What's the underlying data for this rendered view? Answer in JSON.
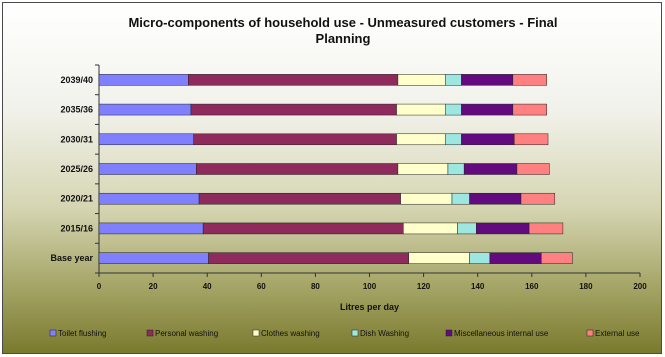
{
  "chart_data": {
    "type": "bar",
    "orientation": "horizontal",
    "stacked": true,
    "title_line1": "Micro-components of household use - Unmeasured customers - Final",
    "title_line2": "Planning",
    "xlabel": "Litres per day",
    "ylabel": "",
    "xlim": [
      0,
      200
    ],
    "xticks": [
      "0",
      "20",
      "40",
      "60",
      "80",
      "100",
      "120",
      "140",
      "160",
      "180",
      "200"
    ],
    "grid": false,
    "legend_position": "bottom",
    "categories": [
      "2039/40",
      "2035/36",
      "2030/31",
      "2025/26",
      "2020/21",
      "2015/16",
      "Base year"
    ],
    "series": [
      {
        "name": "Toilet flushing",
        "color": "#8080ff",
        "values": [
          33,
          34,
          35,
          36,
          37,
          38.5,
          40.5
        ]
      },
      {
        "name": "Personal washing",
        "color": "#8e2a5c",
        "values": [
          77.5,
          76,
          75,
          74.5,
          74.5,
          74,
          74
        ]
      },
      {
        "name": "Clothes washing",
        "color": "#ffffcc",
        "values": [
          17.5,
          18,
          18,
          18.5,
          19,
          20,
          22.5
        ]
      },
      {
        "name": "Dish Washing",
        "color": "#9ee6e0",
        "values": [
          6,
          6,
          6,
          6,
          6.5,
          7,
          7.5
        ]
      },
      {
        "name": "Miscellaneous internal use",
        "color": "#620a7e",
        "values": [
          19,
          19,
          19.5,
          19.5,
          19,
          19.5,
          19
        ]
      },
      {
        "name": "External use",
        "color": "#ff8080",
        "values": [
          12.5,
          12.5,
          12.5,
          12,
          12.5,
          12.5,
          11.5
        ]
      }
    ]
  }
}
